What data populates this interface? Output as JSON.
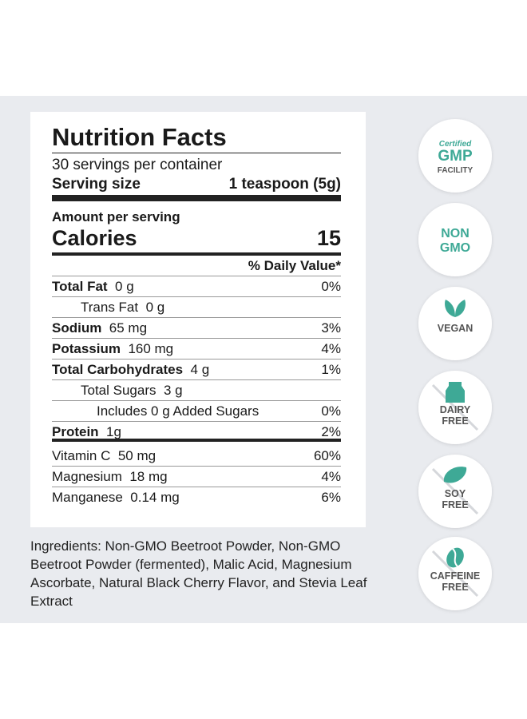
{
  "label": {
    "title": "Nutrition Facts",
    "servings": "30 servings per container",
    "serving_size_label": "Serving size",
    "serving_size_value": "1 teaspoon (5g)",
    "amount_per_serving": "Amount per serving",
    "calories_label": "Calories",
    "calories_value": "15",
    "daily_value_header": "% Daily Value*",
    "rows": [
      {
        "name": "Total Fat",
        "amount": "0 g",
        "dv": "0%"
      },
      {
        "name": "Trans Fat",
        "amount": "0 g"
      },
      {
        "name": "Sodium",
        "amount": "65 mg",
        "dv": "3%"
      },
      {
        "name": "Potassium",
        "amount": "160 mg",
        "dv": "4%"
      },
      {
        "name": "Total Carbohydrates",
        "amount": "4 g",
        "dv": "1%"
      },
      {
        "name": "Total Sugars",
        "amount": "3 g"
      },
      {
        "name": "Includes 0 g Added Sugars",
        "dv": "0%"
      },
      {
        "name": "Protein",
        "amount": "1g",
        "dv": "2%"
      }
    ],
    "vitamins": [
      {
        "name": "Vitamin C",
        "amount": "50 mg",
        "dv": "60%"
      },
      {
        "name": "Magnesium",
        "amount": "18 mg",
        "dv": "4%"
      },
      {
        "name": "Manganese",
        "amount": "0.14 mg",
        "dv": "6%"
      }
    ]
  },
  "ingredients": "Ingredients: Non-GMO Beetroot Powder, Non-GMO Beetroot Powder (fermented), Malic Acid, Magnesium Ascorbate, Natural Black Cherry Flavor, and Stevia Leaf Extract",
  "badges": [
    {
      "lines": [
        "Certified",
        "GMP",
        "FACILITY"
      ]
    },
    {
      "lines": [
        "NON",
        "GMO"
      ]
    },
    {
      "lines": [
        "VEGAN"
      ]
    },
    {
      "lines": [
        "DAIRY",
        "FREE"
      ]
    },
    {
      "lines": [
        "SOY",
        "FREE"
      ]
    },
    {
      "lines": [
        "CAFFEINE",
        "FREE"
      ]
    }
  ]
}
